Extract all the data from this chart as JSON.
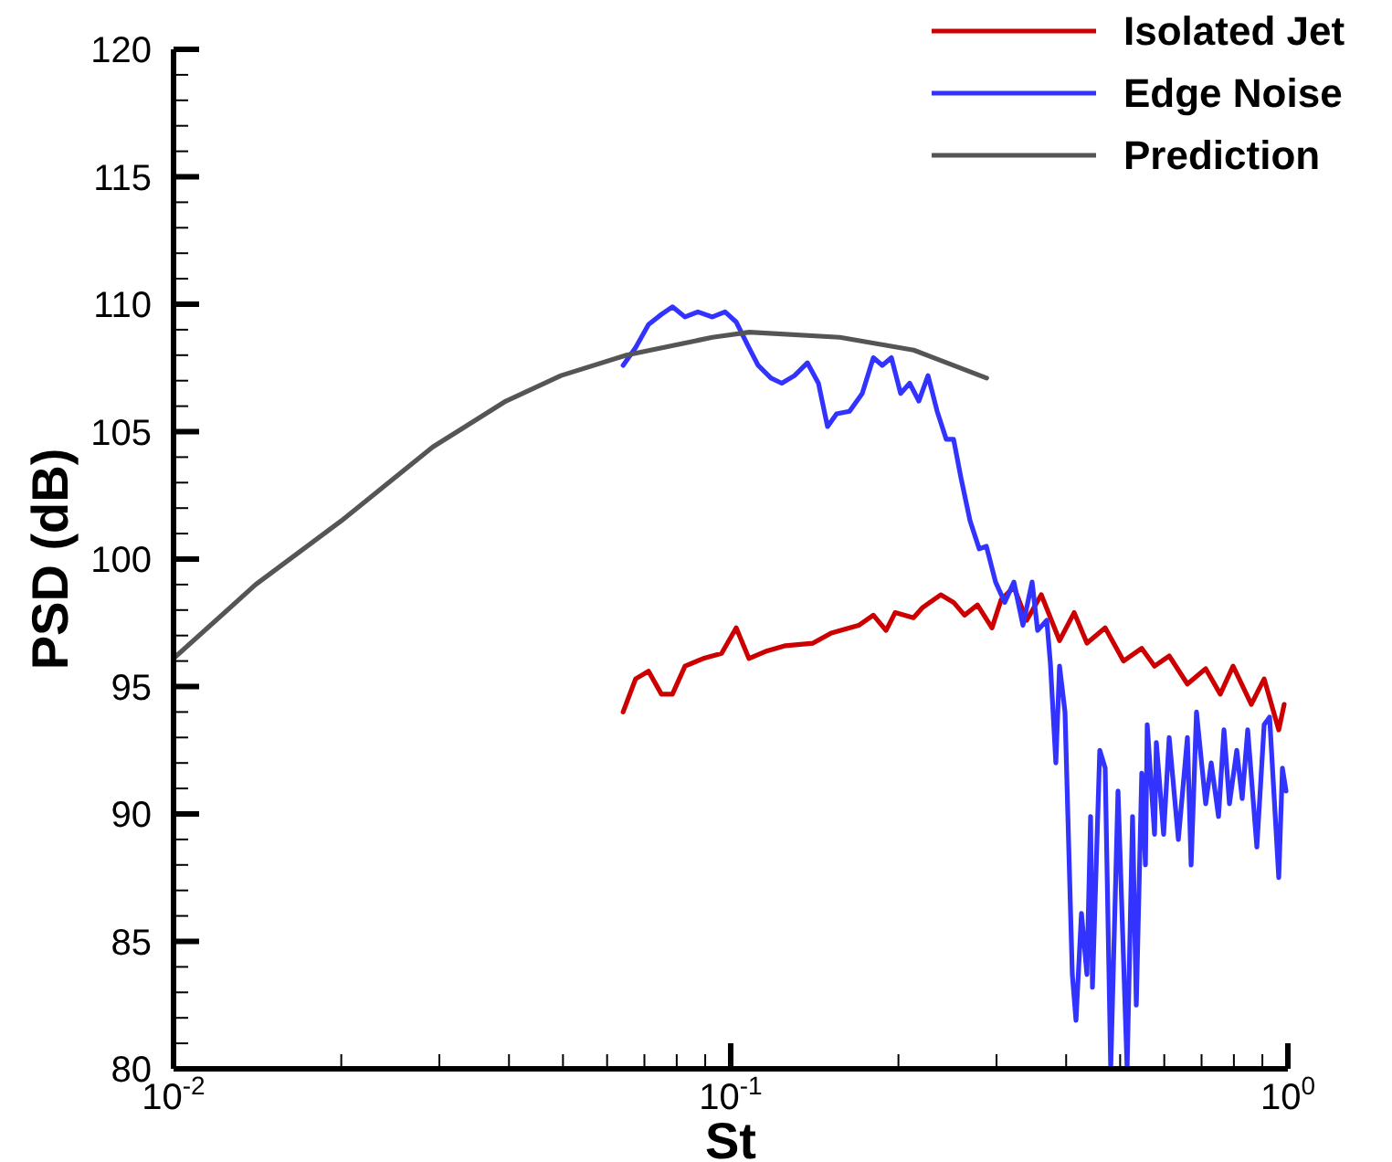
{
  "chart_data": {
    "type": "line",
    "xlabel": "St",
    "ylabel": "PSD (dB)",
    "log": "x",
    "legend": "top right",
    "grid": false,
    "marker": "none",
    "line_style": "solid",
    "xlim": [
      0.01,
      1
    ],
    "ylim": [
      80,
      120
    ],
    "xticks": [
      {
        "value": 0.01,
        "label": "10$^{-2}$"
      },
      {
        "value": 0.02,
        "label": null
      },
      {
        "value": 0.03,
        "label": null
      },
      {
        "value": 0.04,
        "label": null
      },
      {
        "value": 0.05,
        "label": null
      },
      {
        "value": 0.06,
        "label": null
      },
      {
        "value": 0.07,
        "label": null
      },
      {
        "value": 0.08,
        "label": null
      },
      {
        "value": 0.09,
        "label": null
      },
      {
        "value": 0.1,
        "label": "10$^{-1}$"
      },
      {
        "value": 0.2,
        "label": null
      },
      {
        "value": 0.3,
        "label": null
      },
      {
        "value": 0.4,
        "label": null
      },
      {
        "value": 0.5,
        "label": null
      },
      {
        "value": 0.6,
        "label": null
      },
      {
        "value": 0.7,
        "label": null
      },
      {
        "value": 0.8,
        "label": null
      },
      {
        "value": 0.9,
        "label": null
      },
      {
        "value": 1,
        "label": "10$^{0}$"
      }
    ],
    "yticks": [
      80,
      {
        "value": 81,
        "label": null
      },
      {
        "value": 82,
        "label": null
      },
      {
        "value": 83,
        "label": null
      },
      {
        "value": 84,
        "label": null
      },
      85,
      {
        "value": 86,
        "label": null
      },
      {
        "value": 87,
        "label": null
      },
      {
        "value": 88,
        "label": null
      },
      {
        "value": 89,
        "label": null
      },
      90,
      {
        "value": 91,
        "label": null
      },
      {
        "value": 92,
        "label": null
      },
      {
        "value": 93,
        "label": null
      },
      {
        "value": 94,
        "label": null
      },
      95,
      {
        "value": 96,
        "label": null
      },
      {
        "value": 97,
        "label": null
      },
      {
        "value": 98,
        "label": null
      },
      {
        "value": 99,
        "label": null
      },
      100,
      {
        "value": 101,
        "label": null
      },
      {
        "value": 102,
        "label": null
      },
      {
        "value": 103,
        "label": null
      },
      {
        "value": 104,
        "label": null
      },
      105,
      {
        "value": 106,
        "label": null
      },
      {
        "value": 107,
        "label": null
      },
      {
        "value": 108,
        "label": null
      },
      {
        "value": 109,
        "label": null
      },
      110,
      {
        "value": 111,
        "label": null
      },
      {
        "value": 112,
        "label": null
      },
      {
        "value": 113,
        "label": null
      },
      {
        "value": 114,
        "label": null
      },
      115,
      {
        "value": 116,
        "label": null
      },
      {
        "value": 117,
        "label": null
      },
      {
        "value": 118,
        "label": null
      },
      {
        "value": 119,
        "label": null
      },
      120
    ],
    "series": [
      {
        "name": "Isolated Jet",
        "color": "#cc0000",
        "x": [
          0.0641,
          0.0675,
          0.0712,
          0.0751,
          0.0786,
          0.0828,
          0.0893,
          0.0963,
          0.1023,
          0.1078,
          0.1163,
          0.1254,
          0.1405,
          0.1515,
          0.1697,
          0.1803,
          0.19,
          0.1973,
          0.2128,
          0.221,
          0.2382,
          0.2512,
          0.2628,
          0.2772,
          0.2944,
          0.3057,
          0.3223,
          0.3398,
          0.3609,
          0.3892,
          0.4134,
          0.4359,
          0.47,
          0.5069,
          0.5467,
          0.5764,
          0.6123,
          0.6602,
          0.712,
          0.7563,
          0.7973,
          0.8598,
          0.9066,
          0.963,
          0.9849
        ],
        "values": [
          94.0,
          95.3,
          95.6,
          94.7,
          94.7,
          95.8,
          96.1,
          96.3,
          97.3,
          96.1,
          96.4,
          96.6,
          96.7,
          97.1,
          97.4,
          97.8,
          97.2,
          97.9,
          97.7,
          98.1,
          98.6,
          98.3,
          97.8,
          98.2,
          97.3,
          98.4,
          98.9,
          97.6,
          98.6,
          96.8,
          97.9,
          96.7,
          97.3,
          96.0,
          96.5,
          95.8,
          96.2,
          95.1,
          95.7,
          94.7,
          95.8,
          94.3,
          95.3,
          93.3,
          94.3
        ]
      },
      {
        "name": "Edge Noise",
        "color": "#3333ff",
        "x": [
          0.0641,
          0.0675,
          0.0712,
          0.0751,
          0.0786,
          0.0828,
          0.0873,
          0.0927,
          0.0977,
          0.1023,
          0.1078,
          0.112,
          0.1181,
          0.1235,
          0.1302,
          0.1373,
          0.1437,
          0.1492,
          0.1549,
          0.1634,
          0.1722,
          0.1803,
          0.1871,
          0.1943,
          0.2018,
          0.2095,
          0.2176,
          0.226,
          0.2347,
          0.2437,
          0.2512,
          0.2589,
          0.2689,
          0.2793,
          0.2877,
          0.2988,
          0.3103,
          0.3223,
          0.3346,
          0.3475,
          0.3555,
          0.3692,
          0.3748,
          0.3833,
          0.3892,
          0.3981,
          0.4103,
          0.4166,
          0.4261,
          0.4359,
          0.4425,
          0.4459,
          0.4596,
          0.47,
          0.4809,
          0.4956,
          0.5146,
          0.5263,
          0.5345,
          0.5467,
          0.5551,
          0.5592,
          0.5764,
          0.5807,
          0.5984,
          0.6123,
          0.636,
          0.6602,
          0.6704,
          0.6855,
          0.712,
          0.7285,
          0.7508,
          0.7679,
          0.7855,
          0.8096,
          0.8279,
          0.847,
          0.8797,
          0.9066,
          0.9272,
          0.963,
          0.9777,
          0.9924
        ],
        "values": [
          107.6,
          108.3,
          109.2,
          109.6,
          109.9,
          109.5,
          109.7,
          109.5,
          109.7,
          109.3,
          108.3,
          107.6,
          107.1,
          106.9,
          107.2,
          107.7,
          106.9,
          105.2,
          105.7,
          105.8,
          106.5,
          107.9,
          107.6,
          107.9,
          106.5,
          106.9,
          106.2,
          107.2,
          105.8,
          104.7,
          104.7,
          103.2,
          101.5,
          100.4,
          100.5,
          99.1,
          98.3,
          99.1,
          97.4,
          99.1,
          97.2,
          97.6,
          95.9,
          92.0,
          95.8,
          94.0,
          83.7,
          81.9,
          86.1,
          83.7,
          89.9,
          83.2,
          92.5,
          91.8,
          80.0,
          90.9,
          80.0,
          89.9,
          82.5,
          91.6,
          88.0,
          93.5,
          89.2,
          92.8,
          89.2,
          93.0,
          89.0,
          93.0,
          88.0,
          94.0,
          90.4,
          92.0,
          89.9,
          93.3,
          90.4,
          92.5,
          90.6,
          93.3,
          88.7,
          93.5,
          93.8,
          87.5,
          91.8,
          90.9
        ]
      },
      {
        "name": "Prediction",
        "color": "#555555",
        "x": [
          0.01,
          0.01404,
          0.02,
          0.0292,
          0.0395,
          0.0496,
          0.065,
          0.0927,
          0.108,
          0.157,
          0.213,
          0.288
        ],
        "values": [
          96.1,
          99.0,
          101.5,
          104.4,
          106.2,
          107.2,
          108.0,
          108.7,
          108.9,
          108.7,
          108.2,
          107.1
        ]
      }
    ]
  }
}
